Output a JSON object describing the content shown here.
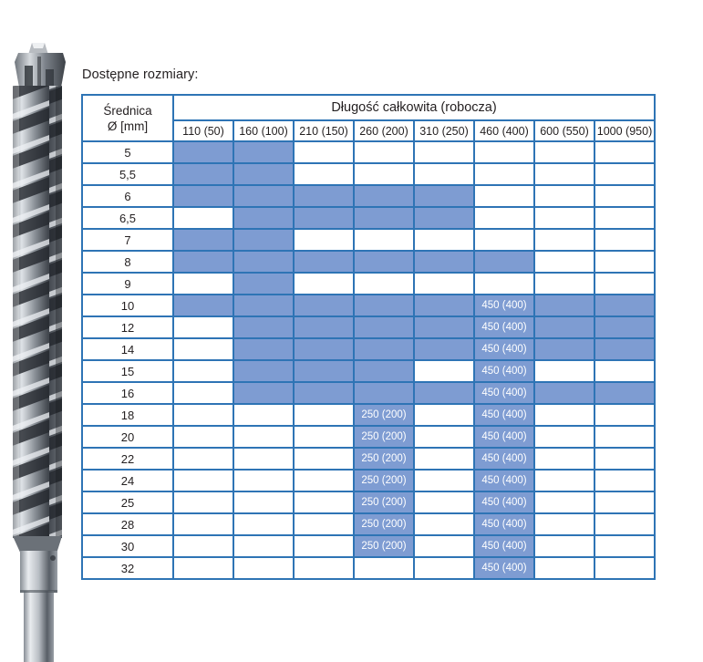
{
  "caption": "Dostępne rozmiary:",
  "colors": {
    "border_blue": "#2e74b5",
    "fill_blue": "#7e9cd2",
    "text_dark": "#231f20",
    "cell_text_white": "#ffffff"
  },
  "table": {
    "diameter_header_line1": "Średnica",
    "diameter_header_line2": "Ø  [mm]",
    "length_header": "Długość całkowita (robocza)",
    "columns": [
      "110 (50)",
      "160 (100)",
      "210 (150)",
      "260 (200)",
      "310 (250)",
      "460 (400)",
      "600 (550)",
      "1000 (950)"
    ],
    "rows": [
      {
        "diameter": "5",
        "cells": [
          "fill",
          "fill",
          "",
          "",
          "",
          "",
          "",
          ""
        ]
      },
      {
        "diameter": "5,5",
        "cells": [
          "fill",
          "fill",
          "",
          "",
          "",
          "",
          "",
          ""
        ]
      },
      {
        "diameter": "6",
        "cells": [
          "fill",
          "fill",
          "fill",
          "fill",
          "fill",
          "",
          "",
          ""
        ]
      },
      {
        "diameter": "6,5",
        "cells": [
          "",
          "fill",
          "fill",
          "fill",
          "fill",
          "",
          "",
          ""
        ]
      },
      {
        "diameter": "7",
        "cells": [
          "fill",
          "fill",
          "",
          "",
          "",
          "",
          "",
          ""
        ]
      },
      {
        "diameter": "8",
        "cells": [
          "fill",
          "fill",
          "fill",
          "fill",
          "fill",
          "fill",
          "",
          ""
        ]
      },
      {
        "diameter": "9",
        "cells": [
          "",
          "fill",
          "",
          "",
          "",
          "",
          "",
          ""
        ]
      },
      {
        "diameter": "10",
        "cells": [
          "fill",
          "fill",
          "fill",
          "fill",
          "fill",
          "450 (400)",
          "fill",
          "fill"
        ]
      },
      {
        "diameter": "12",
        "cells": [
          "",
          "fill",
          "fill",
          "fill",
          "fill",
          "450 (400)",
          "fill",
          "fill"
        ]
      },
      {
        "diameter": "14",
        "cells": [
          "",
          "fill",
          "fill",
          "fill",
          "fill",
          "450 (400)",
          "fill",
          "fill"
        ]
      },
      {
        "diameter": "15",
        "cells": [
          "",
          "fill",
          "fill",
          "fill",
          "",
          "450 (400)",
          "",
          ""
        ]
      },
      {
        "diameter": "16",
        "cells": [
          "",
          "fill",
          "fill",
          "fill",
          "fill",
          "450 (400)",
          "fill",
          "fill"
        ]
      },
      {
        "diameter": "18",
        "cells": [
          "",
          "",
          "",
          "250 (200)",
          "",
          "450 (400)",
          "",
          ""
        ]
      },
      {
        "diameter": "20",
        "cells": [
          "",
          "",
          "",
          "250 (200)",
          "",
          "450 (400)",
          "",
          ""
        ]
      },
      {
        "diameter": "22",
        "cells": [
          "",
          "",
          "",
          "250 (200)",
          "",
          "450 (400)",
          "",
          ""
        ]
      },
      {
        "diameter": "24",
        "cells": [
          "",
          "",
          "",
          "250 (200)",
          "",
          "450 (400)",
          "",
          ""
        ]
      },
      {
        "diameter": "25",
        "cells": [
          "",
          "",
          "",
          "250 (200)",
          "",
          "450 (400)",
          "",
          ""
        ]
      },
      {
        "diameter": "28",
        "cells": [
          "",
          "",
          "",
          "250 (200)",
          "",
          "450 (400)",
          "",
          ""
        ]
      },
      {
        "diameter": "30",
        "cells": [
          "",
          "",
          "",
          "250 (200)",
          "",
          "450 (400)",
          "",
          ""
        ]
      },
      {
        "diameter": "32",
        "cells": [
          "",
          "",
          "",
          "",
          "",
          "450 (400)",
          "",
          ""
        ]
      }
    ]
  }
}
